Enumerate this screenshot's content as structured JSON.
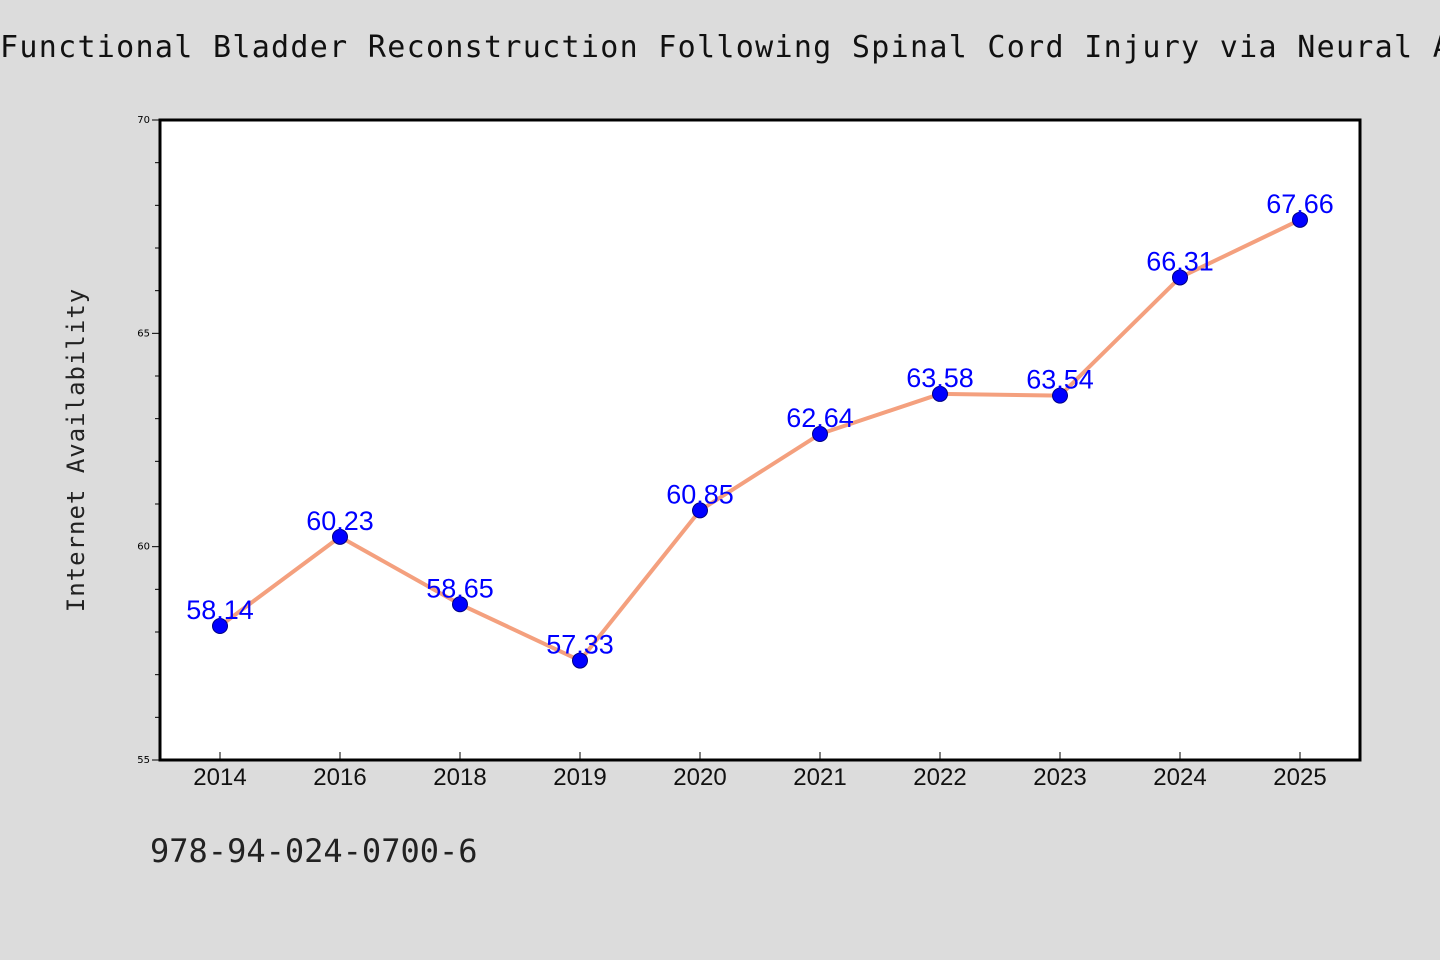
{
  "title": "Functional Bladder Reconstruction Following Spinal Cord Injury via Neural Approa",
  "footer_code": "978-94-024-0700-6",
  "chart_data": {
    "type": "line",
    "title": "Functional Bladder Reconstruction Following Spinal Cord Injury via Neural Approa",
    "xlabel": "",
    "ylabel": "Internet Availability",
    "categories": [
      "2014",
      "2016",
      "2018",
      "2019",
      "2020",
      "2021",
      "2022",
      "2023",
      "2024",
      "2025"
    ],
    "series": [
      {
        "values": [
          58.14,
          60.23,
          58.65,
          57.33,
          60.85,
          62.64,
          63.58,
          63.54,
          66.31,
          67.66
        ]
      }
    ],
    "data_labels": [
      "58.14",
      "60.23",
      "58.65",
      "57.33",
      "60.85",
      "62.64",
      "63.58",
      "63.54",
      "66.31",
      "67.66"
    ],
    "ylim": [
      55,
      70
    ],
    "yticks": [
      55,
      60,
      65,
      70
    ],
    "ytick_labels": [
      "55",
      "60",
      "65",
      "70"
    ],
    "grid": false,
    "legend": "none",
    "colors": {
      "line": "#f4a07e",
      "marker": "#0000ff",
      "marker_edge": "#000080",
      "data_label": "#0000ff",
      "background": "#dcdcdc",
      "plot_background": "#ffffff"
    }
  }
}
